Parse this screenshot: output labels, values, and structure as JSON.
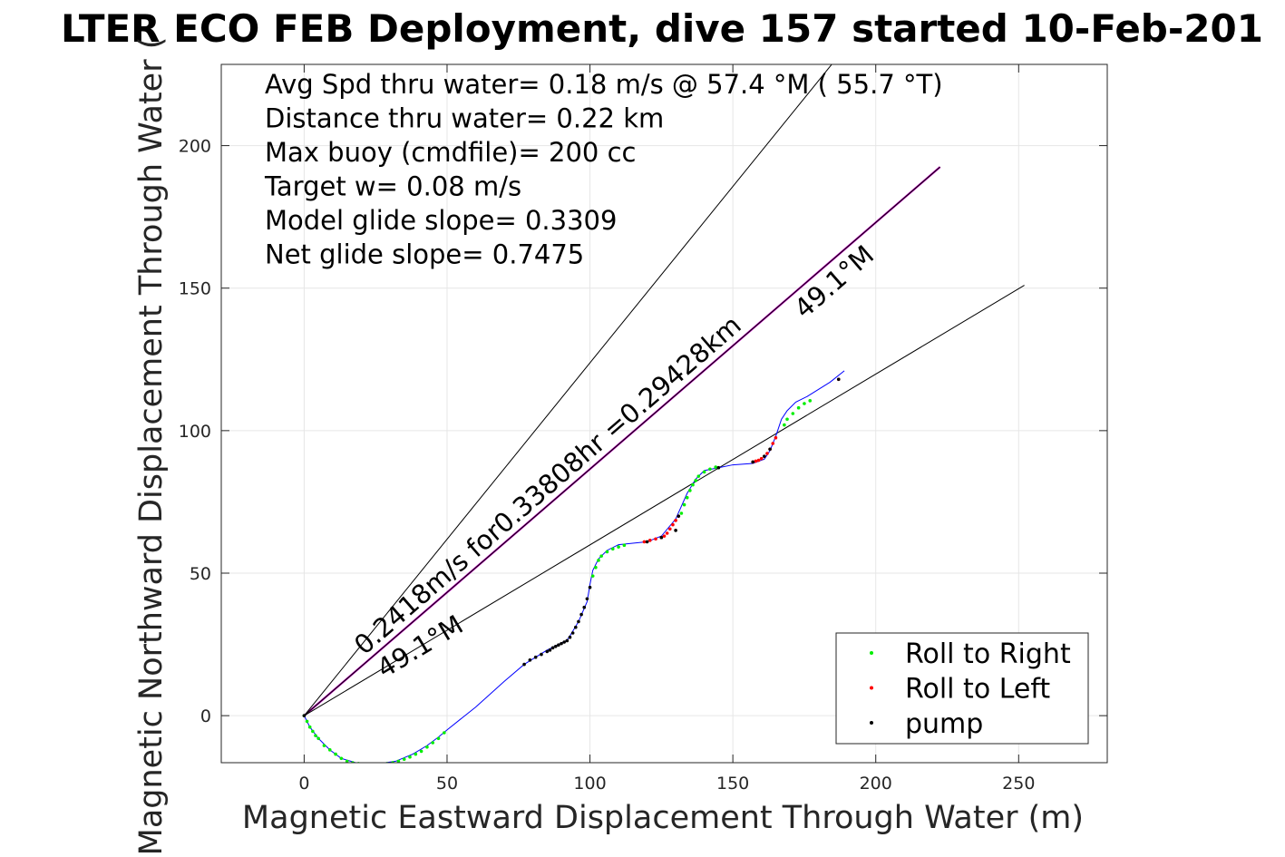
{
  "chart_data": {
    "type": "scatter",
    "title": "LTER ECO FEB Deployment, dive 157 started 10-Feb-201",
    "xlabel": "Magnetic Eastward Displacement Through Water (m)",
    "ylabel": "Magnetic Northward Displacement Through Water (",
    "xlim": [
      -29,
      281
    ],
    "ylim": [
      -16.5,
      228.5
    ],
    "xticks": [
      0,
      50,
      100,
      150,
      200,
      250
    ],
    "yticks": [
      0,
      50,
      100,
      150,
      200
    ],
    "grid": true,
    "info_lines": [
      "Avg Spd thru water=  0.18 m/s @  57.4 °M ( 55.7 °T)",
      "Distance thru water=  0.22 km",
      "Max buoy (cmdfile)= 200 cc",
      "Target w= 0.08 m/s",
      "Model glide slope= 0.3309",
      "Net glide slope= 0.7475"
    ],
    "reference_lines": [
      {
        "x": [
          0,
          222.5
        ],
        "y": [
          0,
          192.5
        ],
        "color": "#c000c0"
      },
      {
        "x": [
          0,
          222.5
        ],
        "y": [
          0,
          192.5
        ],
        "color": "#000000"
      },
      {
        "x": [
          0,
          185
        ],
        "y": [
          0,
          229
        ],
        "color": "#000000"
      },
      {
        "x": [
          0,
          252
        ],
        "y": [
          0,
          151
        ],
        "color": "#000000"
      }
    ],
    "annotations": [
      {
        "text": "0.2418m/s for0.33808hr =0.29428km",
        "x": 21,
        "y": 21,
        "angle_deg": -40.9
      },
      {
        "text": "49.1°M",
        "x": 28,
        "y": 13,
        "angle_deg": -31
      },
      {
        "text": "49.1°M",
        "x": 175,
        "y": 139,
        "angle_deg": -40.9
      }
    ],
    "track": {
      "color": "#0000ff",
      "x": [
        0,
        2,
        5,
        9,
        13,
        18,
        25,
        32,
        38,
        43,
        47,
        50,
        60,
        70,
        77,
        85,
        91,
        92,
        93,
        96,
        99,
        100,
        101,
        103,
        106,
        110,
        115,
        120,
        125,
        130,
        134,
        137,
        140,
        145,
        150,
        157,
        161,
        163,
        165,
        167,
        169,
        172,
        176,
        184,
        189
      ],
      "y": [
        0,
        -4,
        -8,
        -12,
        -15,
        -16.5,
        -17,
        -16,
        -13.5,
        -10.5,
        -7.5,
        -5,
        3,
        12,
        18,
        23,
        26,
        26.5,
        28,
        33,
        40,
        46,
        51,
        55,
        58,
        60,
        60.5,
        61,
        63,
        69,
        78,
        83,
        86,
        87,
        88,
        88.5,
        90,
        93,
        98,
        104,
        107,
        110,
        112,
        117,
        121
      ]
    },
    "series": [
      {
        "name": "Roll to Right",
        "color": "#00ee00",
        "x": [
          0,
          1,
          2,
          3,
          4,
          5,
          7,
          9,
          11,
          13,
          15,
          17,
          19,
          21,
          23,
          25,
          27,
          29,
          31,
          33,
          35,
          37,
          39,
          41,
          43,
          45,
          47,
          49,
          101,
          102,
          103,
          104,
          106,
          108,
          110,
          112,
          132,
          133,
          134,
          135,
          136,
          137,
          138,
          140,
          142,
          144,
          168,
          169,
          171,
          173,
          175,
          177
        ],
        "y": [
          0,
          -2,
          -4,
          -5.5,
          -7,
          -8,
          -10.5,
          -12,
          -13.5,
          -15,
          -16,
          -16.5,
          -16.8,
          -17,
          -17,
          -17.1,
          -17,
          -16.8,
          -16.5,
          -16,
          -15.3,
          -14.5,
          -13.5,
          -12.5,
          -11,
          -9.5,
          -8,
          -6,
          49,
          52,
          54.5,
          56,
          57.5,
          58.5,
          59.2,
          59.8,
          71,
          74,
          76.5,
          79,
          81,
          82.5,
          84,
          85.5,
          86.5,
          87.2,
          102,
          104,
          106,
          108,
          109.5,
          110.5
        ]
      },
      {
        "name": "Roll to Left",
        "color": "#ff0000",
        "x": [
          119,
          121,
          123,
          125,
          126,
          127,
          128,
          129,
          130,
          131,
          157,
          158,
          159,
          160,
          161,
          162,
          163,
          164,
          165,
          187
        ],
        "y": [
          61,
          61.5,
          62,
          62.5,
          63,
          64,
          65.5,
          67,
          68.5,
          70,
          89,
          89.3,
          89.6,
          90.2,
          91,
          92,
          93.5,
          95.5,
          97.5,
          118
        ]
      },
      {
        "name": "pump",
        "color": "#000000",
        "x": [
          77,
          79,
          81,
          83,
          85,
          86,
          87,
          88,
          89,
          90,
          91,
          92,
          93,
          94,
          95,
          96,
          97,
          98,
          99,
          100,
          0,
          120,
          125,
          130,
          131,
          145,
          157,
          161,
          163,
          187
        ],
        "y": [
          18,
          19.5,
          20.5,
          21.5,
          22.5,
          23,
          23.8,
          24.3,
          24.8,
          25.3,
          25.8,
          26.3,
          27.5,
          29,
          31,
          33,
          35.5,
          38,
          41,
          45,
          0,
          61,
          62.5,
          65,
          70,
          87,
          89,
          91,
          93.5,
          118
        ]
      }
    ],
    "legend_position": "bottom-right"
  }
}
